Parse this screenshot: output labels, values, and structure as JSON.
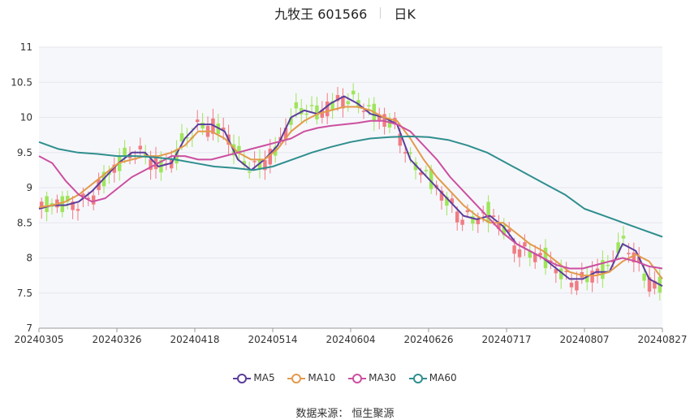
{
  "header": {
    "name": "九牧王 601566",
    "period": "日K"
  },
  "legend": [
    {
      "label": "MA5",
      "color": "#5b3d9c"
    },
    {
      "label": "MA10",
      "color": "#e39a4b"
    },
    {
      "label": "MA30",
      "color": "#cc4fa0"
    },
    {
      "label": "MA60",
      "color": "#2f8e8e"
    }
  ],
  "source": "数据来源： 恒生聚源",
  "colors": {
    "up": "#f07c82",
    "down": "#9ee55a",
    "grid": "#e6e6ee",
    "plot_bg": "#f6f7fb"
  },
  "chart_data": {
    "type": "candlestick",
    "ylim": [
      7,
      11
    ],
    "yticks": [
      7,
      7.5,
      8,
      8.5,
      9,
      9.5,
      10,
      10.5,
      11
    ],
    "xticks": [
      "20240305",
      "20240326",
      "20240418",
      "20240514",
      "20240604",
      "20240626",
      "20240717",
      "20240807",
      "20240827"
    ],
    "series": [
      {
        "name": "MA5",
        "values": [
          8.7,
          8.75,
          8.75,
          8.8,
          8.95,
          9.15,
          9.35,
          9.5,
          9.5,
          9.3,
          9.35,
          9.7,
          9.9,
          9.9,
          9.8,
          9.4,
          9.25,
          9.4,
          9.6,
          10.0,
          10.1,
          10.05,
          10.2,
          10.3,
          10.2,
          10.05,
          10.0,
          9.9,
          9.4,
          9.2,
          9.0,
          8.8,
          8.6,
          8.55,
          8.6,
          8.45,
          8.2,
          8.1,
          8.0,
          7.85,
          7.7,
          7.7,
          7.8,
          7.8,
          8.2,
          8.1,
          7.7,
          7.6
        ]
      },
      {
        "name": "MA10",
        "values": [
          8.72,
          8.75,
          8.8,
          8.9,
          9.05,
          9.2,
          9.35,
          9.4,
          9.45,
          9.45,
          9.5,
          9.6,
          9.8,
          9.8,
          9.7,
          9.5,
          9.4,
          9.4,
          9.55,
          9.8,
          9.95,
          10.05,
          10.1,
          10.15,
          10.15,
          10.1,
          10.0,
          9.95,
          9.7,
          9.4,
          9.15,
          8.95,
          8.75,
          8.6,
          8.5,
          8.5,
          8.35,
          8.2,
          8.1,
          7.95,
          7.8,
          7.75,
          7.75,
          7.8,
          7.95,
          8.05,
          7.95,
          7.7
        ]
      },
      {
        "name": "MA30",
        "values": [
          9.45,
          9.35,
          9.1,
          8.9,
          8.8,
          8.85,
          9.0,
          9.15,
          9.25,
          9.35,
          9.45,
          9.45,
          9.4,
          9.4,
          9.45,
          9.5,
          9.55,
          9.6,
          9.65,
          9.7,
          9.8,
          9.85,
          9.88,
          9.9,
          9.92,
          9.95,
          9.95,
          9.9,
          9.8,
          9.6,
          9.4,
          9.15,
          8.95,
          8.75,
          8.55,
          8.35,
          8.2,
          8.1,
          8.0,
          7.9,
          7.85,
          7.85,
          7.9,
          7.95,
          8.0,
          7.95,
          7.88,
          7.85
        ]
      },
      {
        "name": "MA60",
        "values": [
          9.65,
          9.55,
          9.5,
          9.48,
          9.45,
          9.45,
          9.43,
          9.4,
          9.35,
          9.3,
          9.28,
          9.25,
          9.3,
          9.4,
          9.5,
          9.58,
          9.65,
          9.7,
          9.72,
          9.73,
          9.72,
          9.68,
          9.6,
          9.5,
          9.35,
          9.2,
          9.05,
          8.9,
          8.7,
          8.6,
          8.5,
          8.4,
          8.3
        ]
      }
    ]
  }
}
